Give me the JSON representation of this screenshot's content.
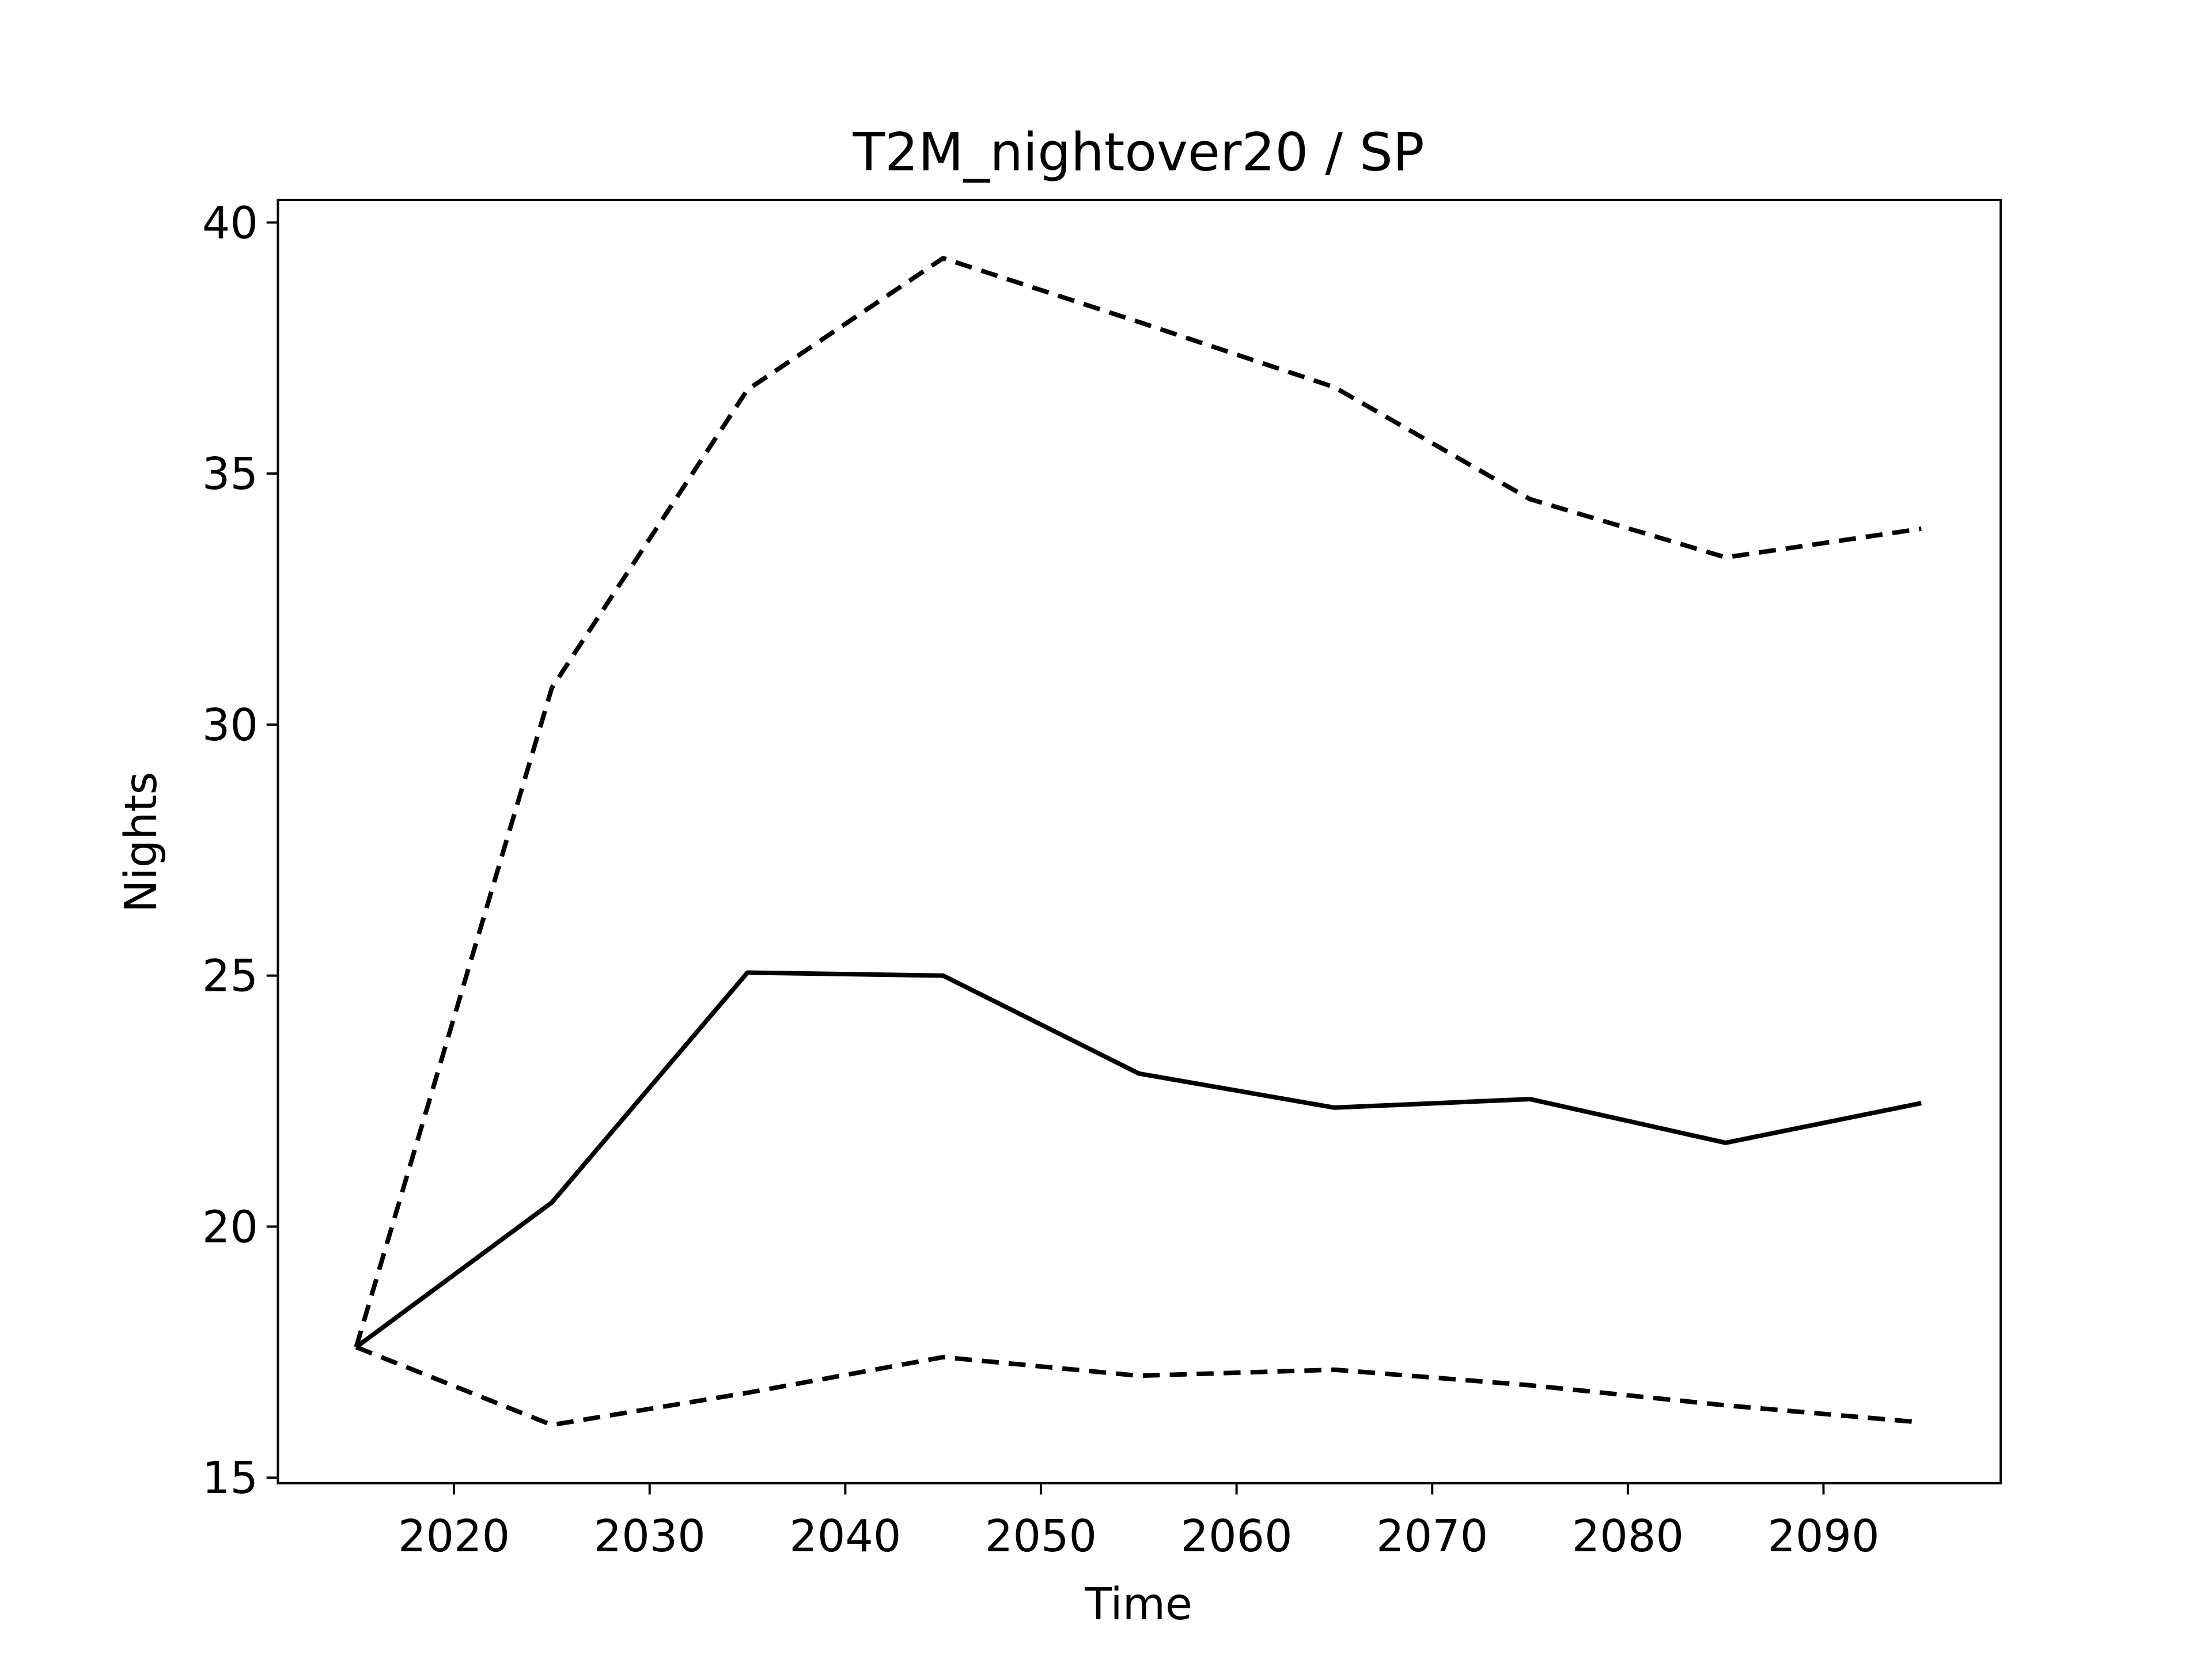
{
  "chart_data": {
    "type": "line",
    "title": "T2M_nightover20 / SP",
    "xlabel": "Time",
    "ylabel": "Nights",
    "x": [
      2015,
      2025,
      2035,
      2045,
      2055,
      2065,
      2075,
      2085,
      2095
    ],
    "series": [
      {
        "color": "#000000",
        "dashed": false,
        "values": [
          17.6,
          20.48,
          25.06,
          25.0,
          23.05,
          22.37,
          22.54,
          21.67,
          22.46
        ]
      },
      {
        "color": "#000000",
        "dashed": true,
        "values": [
          17.6,
          30.73,
          36.67,
          39.29,
          38.02,
          36.72,
          34.49,
          33.33,
          33.9
        ]
      },
      {
        "color": "#000000",
        "dashed": true,
        "values": [
          17.6,
          16.05,
          16.69,
          17.4,
          17.03,
          17.15,
          16.84,
          16.44,
          16.1
        ]
      }
    ],
    "xlim": [
      2011,
      2099.06
    ],
    "ylim": [
      14.89,
      40.45
    ],
    "xticks": [
      2020,
      2030,
      2040,
      2050,
      2060,
      2070,
      2080,
      2090
    ],
    "yticks": [
      15,
      20,
      25,
      30,
      35,
      40
    ],
    "grid": false
  }
}
